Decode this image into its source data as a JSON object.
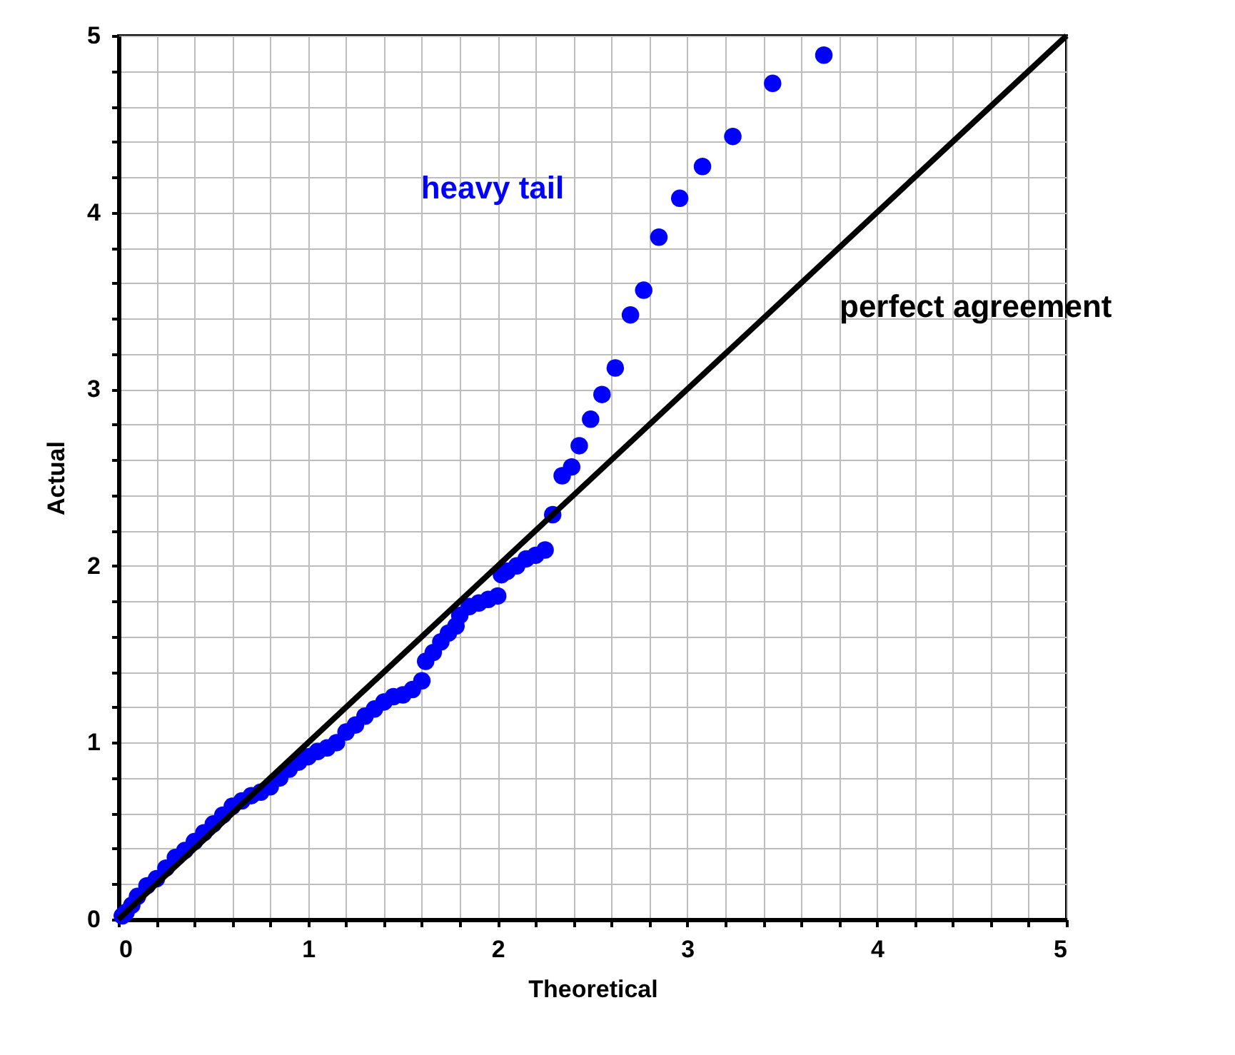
{
  "chart_data": {
    "type": "scatter",
    "xlabel": "Theoretical",
    "ylabel": "Actual",
    "xlim": [
      0,
      5
    ],
    "ylim": [
      0,
      5
    ],
    "xticks": [
      0,
      {
        "value": 0.2,
        "label": null
      },
      {
        "value": 0.4,
        "label": null
      },
      {
        "value": 0.6,
        "label": null
      },
      {
        "value": 0.8,
        "label": null
      },
      1,
      {
        "value": 1.2,
        "label": null
      },
      {
        "value": 1.4,
        "label": null
      },
      {
        "value": 1.6,
        "label": null
      },
      {
        "value": 1.8,
        "label": null
      },
      2,
      {
        "value": 2.2,
        "label": null
      },
      {
        "value": 2.4,
        "label": null
      },
      {
        "value": 2.6,
        "label": null
      },
      {
        "value": 2.8,
        "label": null
      },
      3,
      {
        "value": 3.2,
        "label": null
      },
      {
        "value": 3.4,
        "label": null
      },
      {
        "value": 3.6,
        "label": null
      },
      {
        "value": 3.8,
        "label": null
      },
      4,
      {
        "value": 4.2,
        "label": null
      },
      {
        "value": 4.4,
        "label": null
      },
      {
        "value": 4.6,
        "label": null
      },
      {
        "value": 4.8,
        "label": null
      },
      5
    ],
    "yticks": [
      0,
      {
        "value": 0.2,
        "label": null
      },
      {
        "value": 0.4,
        "label": null
      },
      {
        "value": 0.6,
        "label": null
      },
      {
        "value": 0.8,
        "label": null
      },
      1,
      {
        "value": 1.2,
        "label": null
      },
      {
        "value": 1.4,
        "label": null
      },
      {
        "value": 1.6,
        "label": null
      },
      {
        "value": 1.8,
        "label": null
      },
      2,
      {
        "value": 2.2,
        "label": null
      },
      {
        "value": 2.4,
        "label": null
      },
      {
        "value": 2.6,
        "label": null
      },
      {
        "value": 2.8,
        "label": null
      },
      3,
      {
        "value": 3.2,
        "label": null
      },
      {
        "value": 3.4,
        "label": null
      },
      {
        "value": 3.6,
        "label": null
      },
      {
        "value": 3.8,
        "label": null
      },
      4,
      {
        "value": 4.2,
        "label": null
      },
      {
        "value": 4.4,
        "label": null
      },
      {
        "value": 4.6,
        "label": null
      },
      {
        "value": 4.8,
        "label": null
      },
      5
    ],
    "grid": true,
    "marker": "circle",
    "series": [
      {
        "color": "#0000ff",
        "x": [
          0.02,
          0.04,
          0.07,
          0.1,
          0.15,
          0.2,
          0.25,
          0.3,
          0.35,
          0.4,
          0.45,
          0.5,
          0.55,
          0.6,
          0.65,
          0.7,
          0.75,
          0.8,
          0.85,
          0.9,
          0.95,
          1.0,
          1.05,
          1.1,
          1.15,
          1.2,
          1.25,
          1.3,
          1.35,
          1.4,
          1.45,
          1.5,
          1.55,
          1.6,
          1.62,
          1.66,
          1.7,
          1.74,
          1.78,
          1.8,
          1.85,
          1.9,
          1.95,
          2.0,
          2.02,
          2.05,
          2.1,
          2.15,
          2.2,
          2.25,
          2.29,
          2.34,
          2.39,
          2.43,
          2.49,
          2.55,
          2.62,
          2.7,
          2.77,
          2.85,
          2.96,
          3.08,
          3.24,
          3.45,
          3.72
        ],
        "values": [
          0.02,
          0.04,
          0.08,
          0.13,
          0.19,
          0.23,
          0.29,
          0.35,
          0.39,
          0.44,
          0.49,
          0.54,
          0.59,
          0.64,
          0.67,
          0.7,
          0.72,
          0.75,
          0.8,
          0.85,
          0.89,
          0.92,
          0.95,
          0.97,
          1.0,
          1.06,
          1.1,
          1.15,
          1.19,
          1.23,
          1.26,
          1.27,
          1.3,
          1.35,
          1.46,
          1.51,
          1.57,
          1.62,
          1.66,
          1.72,
          1.77,
          1.79,
          1.81,
          1.83,
          1.95,
          1.97,
          2.0,
          2.04,
          2.06,
          2.09,
          2.29,
          2.51,
          2.56,
          2.68,
          2.83,
          2.97,
          3.12,
          3.42,
          3.56,
          3.86,
          4.08,
          4.26,
          4.43,
          4.73,
          4.89
        ]
      },
      {
        "type": "line",
        "color": "#000000",
        "x": [
          0,
          5
        ],
        "values": [
          0,
          5
        ],
        "line_style": "solid",
        "marker": "none"
      }
    ],
    "annotations": [
      "heavy tail",
      "perfect agreement"
    ]
  }
}
